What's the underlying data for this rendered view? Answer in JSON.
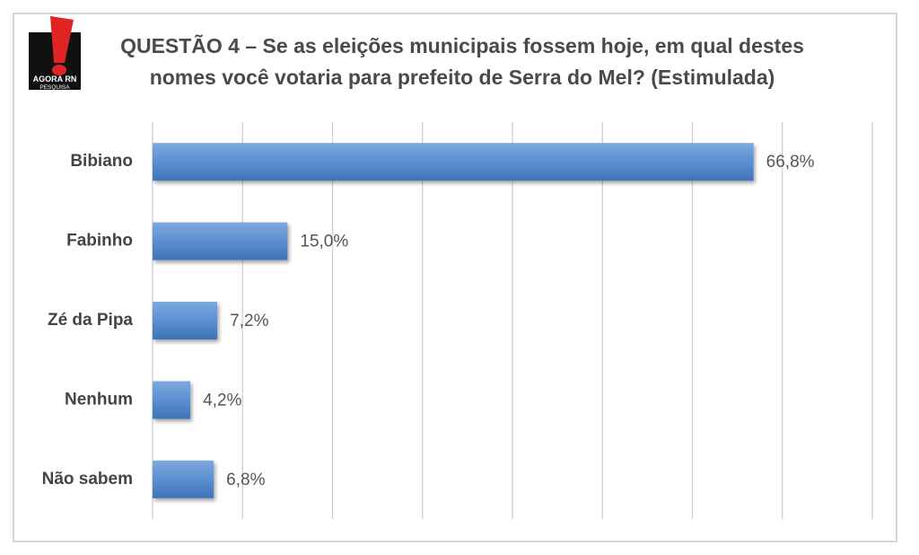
{
  "logo": {
    "icon": "exclamation-mark-icon",
    "text_line1": "AGORA RN",
    "text_line2": "PESQUISA",
    "colors": {
      "mark": "#e02424",
      "box": "#111111"
    }
  },
  "chart_data": {
    "type": "bar",
    "orientation": "horizontal",
    "title_lines": [
      "QUESTÃO 4 – Se as eleições municipais fossem hoje, em qual destes",
      "nomes você votaria para prefeito de Serra do Mel? (Estimulada)"
    ],
    "categories": [
      "Bibiano",
      "Fabinho",
      "Zé da Pipa",
      "Nenhum",
      "Não sabem"
    ],
    "values": [
      66.8,
      15.0,
      7.2,
      4.2,
      6.8
    ],
    "value_labels": [
      "66,8%",
      "15,0%",
      "7,2%",
      "4,2%",
      "6,8%"
    ],
    "xlim": [
      0,
      80
    ],
    "gridlines": [
      0,
      10,
      20,
      30,
      40,
      50,
      60,
      70,
      80
    ],
    "grid": true,
    "legend": "none",
    "bar_color": "#5b8fd0",
    "bar_color_light": "#7fa9df",
    "bar_color_dark": "#3e73b7"
  }
}
